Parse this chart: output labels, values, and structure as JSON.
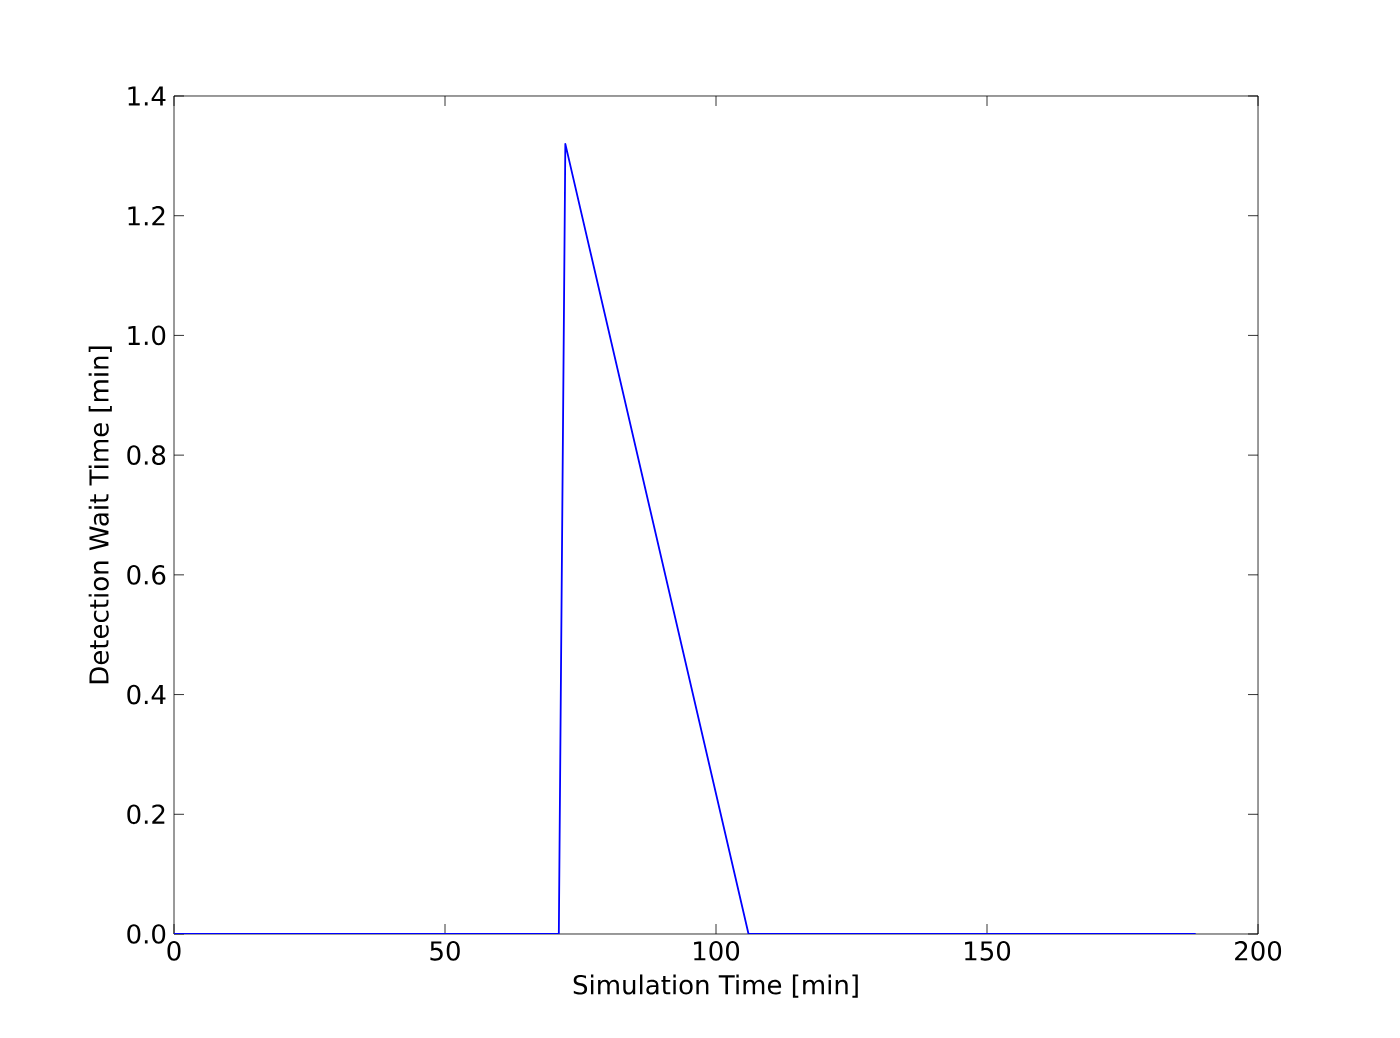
{
  "chart_data": {
    "type": "line",
    "xlabel": "Simulation Time [min]",
    "ylabel": "Detection Wait Time [min]",
    "x": [
      0,
      71,
      72.2,
      106,
      188.5
    ],
    "series": [
      {
        "color": "#0000ff",
        "values": [
          0,
          0,
          1.32,
          0,
          0
        ]
      }
    ],
    "xlim": [
      0,
      200
    ],
    "ylim": [
      0,
      1.4
    ],
    "xticks": [
      0,
      50,
      100,
      150,
      200
    ],
    "yticks": [
      {
        "value": 0,
        "label": "0.0"
      },
      {
        "value": 0.2,
        "label": "0.2"
      },
      {
        "value": 0.4,
        "label": "0.4"
      },
      {
        "value": 0.6,
        "label": "0.6"
      },
      {
        "value": 0.8,
        "label": "0.8"
      },
      {
        "value": 1.0,
        "label": "1.0"
      },
      {
        "value": 1.2,
        "label": "1.2"
      },
      {
        "value": 1.4,
        "label": "1.4"
      }
    ],
    "marker": "none",
    "line_style": "solid"
  }
}
